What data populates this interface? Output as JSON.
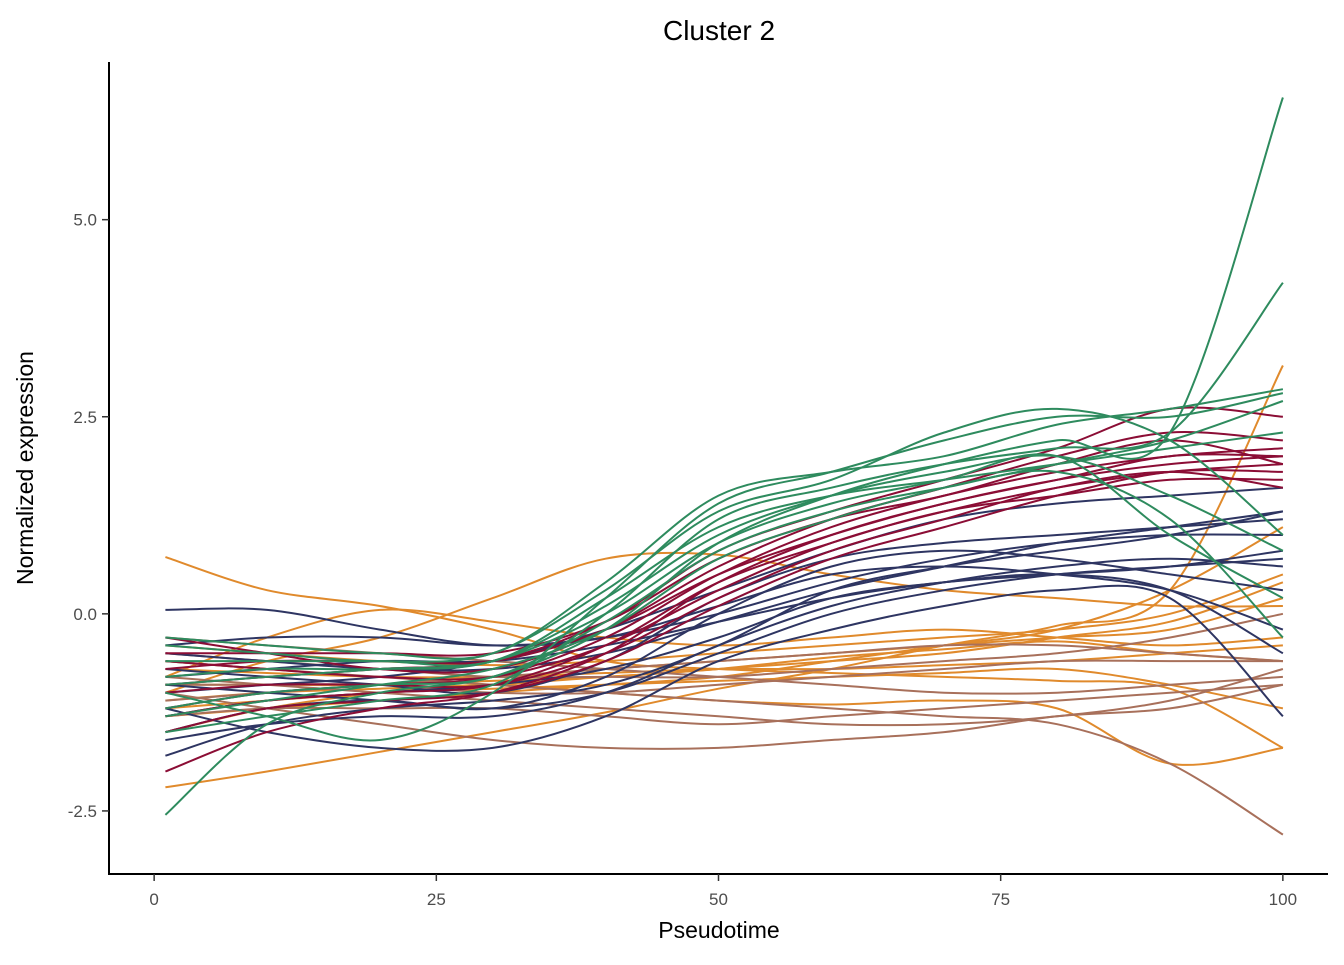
{
  "chart_data": {
    "type": "line",
    "title": "Cluster 2",
    "xlabel": "Pseudotime",
    "ylabel": "Normalized expression",
    "xlim": [
      -4,
      104
    ],
    "ylim": [
      -3.3,
      7.0
    ],
    "x_ticks": [
      0,
      25,
      50,
      75,
      100
    ],
    "x_tick_labels": [
      "0",
      "25",
      "50",
      "75",
      "100"
    ],
    "y_ticks": [
      -2.5,
      0.0,
      2.5,
      5.0
    ],
    "y_tick_labels": [
      "-2.5",
      "0.0",
      "2.5",
      "5.0"
    ],
    "grid": false,
    "legend": "none",
    "x": [
      1,
      10,
      20,
      30,
      40,
      50,
      60,
      70,
      80,
      90,
      100
    ],
    "groups": [
      {
        "color": "#E08A2C",
        "series": [
          {
            "values": [
              0.72,
              0.3,
              0.1,
              -0.2,
              -0.6,
              -0.7,
              -0.75,
              -0.8,
              -0.85,
              -0.95,
              -1.7
            ]
          },
          {
            "values": [
              -2.2,
              -2.0,
              -1.75,
              -1.5,
              -1.25,
              -0.95,
              -0.7,
              -0.4,
              -0.15,
              0.3,
              3.15
            ]
          },
          {
            "values": [
              -1.5,
              -1.2,
              -1.0,
              -0.9,
              -1.0,
              -1.1,
              -1.15,
              -1.1,
              -1.2,
              -1.9,
              -1.7
            ]
          },
          {
            "values": [
              -1.0,
              -0.6,
              -0.3,
              0.2,
              0.7,
              0.75,
              0.5,
              0.3,
              0.2,
              0.1,
              0.1
            ]
          },
          {
            "values": [
              -0.8,
              -0.3,
              0.05,
              -0.1,
              -0.3,
              -0.4,
              -0.3,
              -0.2,
              -0.3,
              -0.4,
              -0.3
            ]
          },
          {
            "values": [
              -0.6,
              -0.7,
              -0.8,
              -0.8,
              -0.7,
              -0.6,
              -0.5,
              -0.4,
              -0.3,
              -0.2,
              0.2
            ]
          },
          {
            "values": [
              -0.9,
              -0.9,
              -0.9,
              -0.85,
              -0.8,
              -0.7,
              -0.6,
              -0.5,
              -0.3,
              -0.1,
              0.4
            ]
          },
          {
            "values": [
              -1.2,
              -1.1,
              -1.0,
              -0.95,
              -0.9,
              -0.85,
              -0.8,
              -0.75,
              -0.7,
              -0.9,
              -1.2
            ]
          },
          {
            "values": [
              -0.4,
              -0.5,
              -0.6,
              -0.65,
              -0.6,
              -0.5,
              -0.4,
              -0.3,
              -0.2,
              0.0,
              0.5
            ]
          },
          {
            "values": [
              -1.3,
              -1.2,
              -1.1,
              -1.0,
              -0.9,
              -0.8,
              -0.6,
              -0.4,
              -0.2,
              0.3,
              1.1
            ]
          },
          {
            "values": [
              -0.7,
              -0.75,
              -0.8,
              -0.8,
              -0.75,
              -0.7,
              -0.7,
              -0.65,
              -0.6,
              -0.5,
              -0.4
            ]
          },
          {
            "values": [
              -1.1,
              -1.0,
              -0.95,
              -0.9,
              -0.8,
              -0.7,
              -0.55,
              -0.45,
              -0.35,
              -0.5,
              -0.6
            ]
          }
        ]
      },
      {
        "color": "#A8705B",
        "series": [
          {
            "values": [
              -0.6,
              -0.7,
              -0.8,
              -0.9,
              -1.0,
              -1.1,
              -1.2,
              -1.3,
              -1.4,
              -1.9,
              -2.8
            ]
          },
          {
            "values": [
              -1.0,
              -1.2,
              -1.4,
              -1.6,
              -1.7,
              -1.7,
              -1.6,
              -1.5,
              -1.3,
              -1.2,
              -0.9
            ]
          },
          {
            "values": [
              -0.8,
              -0.9,
              -1.0,
              -1.1,
              -1.2,
              -1.3,
              -1.4,
              -1.4,
              -1.3,
              -1.1,
              -0.7
            ]
          },
          {
            "values": [
              -1.3,
              -1.2,
              -1.2,
              -1.2,
              -1.3,
              -1.4,
              -1.3,
              -1.2,
              -1.1,
              -1.0,
              -0.9
            ]
          },
          {
            "values": [
              -0.5,
              -0.6,
              -0.7,
              -0.8,
              -0.8,
              -0.8,
              -0.7,
              -0.6,
              -0.5,
              -0.3,
              0.0
            ]
          },
          {
            "values": [
              -0.9,
              -0.9,
              -0.9,
              -1.0,
              -1.0,
              -0.9,
              -0.8,
              -0.7,
              -0.6,
              -0.6,
              -0.6
            ]
          },
          {
            "values": [
              -0.3,
              -0.4,
              -0.5,
              -0.6,
              -0.7,
              -0.8,
              -0.9,
              -1.0,
              -1.0,
              -0.9,
              -0.8
            ]
          },
          {
            "values": [
              -1.1,
              -1.0,
              -0.9,
              -0.8,
              -0.7,
              -0.6,
              -0.5,
              -0.4,
              -0.4,
              -0.5,
              -0.6
            ]
          }
        ]
      },
      {
        "color": "#2E3562",
        "series": [
          {
            "values": [
              -1.8,
              -1.4,
              -1.2,
              -1.1,
              -0.9,
              -0.4,
              0.3,
              0.6,
              0.8,
              1.0,
              1.3
            ]
          },
          {
            "values": [
              -1.5,
              -1.2,
              -1.1,
              -1.2,
              -0.8,
              0.0,
              0.6,
              0.8,
              0.7,
              0.5,
              0.3
            ]
          },
          {
            "values": [
              0.05,
              0.05,
              -0.2,
              -0.4,
              -0.3,
              0.1,
              0.5,
              0.6,
              0.5,
              0.3,
              -0.2
            ]
          },
          {
            "values": [
              -1.2,
              -1.5,
              -1.7,
              -1.7,
              -1.3,
              -0.6,
              -0.2,
              0.1,
              0.3,
              0.2,
              -1.3
            ]
          },
          {
            "values": [
              -0.7,
              -0.8,
              -0.9,
              -1.0,
              -0.6,
              0.2,
              0.7,
              0.9,
              1.0,
              1.1,
              1.2
            ]
          },
          {
            "values": [
              -1.0,
              -0.9,
              -0.8,
              -0.6,
              -0.2,
              0.3,
              0.8,
              1.2,
              1.4,
              1.5,
              1.6
            ]
          },
          {
            "values": [
              -0.5,
              -0.6,
              -0.7,
              -0.7,
              -0.5,
              -0.1,
              0.3,
              0.6,
              0.9,
              1.1,
              1.3
            ]
          },
          {
            "values": [
              -1.3,
              -1.1,
              -1.0,
              -0.9,
              -0.7,
              -0.3,
              0.2,
              0.4,
              0.5,
              0.3,
              -0.5
            ]
          },
          {
            "values": [
              -0.9,
              -1.0,
              -1.1,
              -1.2,
              -1.0,
              -0.5,
              0.0,
              0.3,
              0.5,
              0.6,
              0.7
            ]
          },
          {
            "values": [
              -0.4,
              -0.3,
              -0.3,
              -0.4,
              -0.3,
              0.0,
              0.4,
              0.7,
              0.9,
              1.0,
              1.0
            ]
          },
          {
            "values": [
              -1.6,
              -1.4,
              -1.3,
              -1.3,
              -1.0,
              -0.4,
              0.1,
              0.4,
              0.6,
              0.7,
              0.6
            ]
          },
          {
            "values": [
              -0.8,
              -0.7,
              -0.6,
              -0.6,
              -0.4,
              -0.1,
              0.2,
              0.4,
              0.5,
              0.6,
              0.8
            ]
          }
        ]
      },
      {
        "color": "#8B0D35",
        "series": [
          {
            "values": [
              -2.0,
              -1.5,
              -1.2,
              -1.0,
              -0.5,
              0.4,
              1.0,
              1.4,
              1.7,
              1.9,
              2.0
            ]
          },
          {
            "values": [
              -1.2,
              -1.0,
              -0.9,
              -0.8,
              -0.3,
              0.5,
              1.1,
              1.5,
              1.8,
              2.0,
              2.1
            ]
          },
          {
            "values": [
              -0.6,
              -0.7,
              -0.8,
              -0.8,
              -0.4,
              0.3,
              0.9,
              1.3,
              1.6,
              1.8,
              1.9
            ]
          },
          {
            "values": [
              -0.3,
              -0.5,
              -0.7,
              -0.7,
              -0.2,
              0.6,
              1.2,
              1.6,
              2.0,
              2.3,
              2.2
            ]
          },
          {
            "values": [
              -1.5,
              -1.2,
              -1.1,
              -1.0,
              -0.6,
              0.1,
              0.7,
              1.1,
              1.5,
              1.8,
              1.8
            ]
          },
          {
            "values": [
              -0.9,
              -0.8,
              -0.7,
              -0.6,
              -0.1,
              0.8,
              1.3,
              1.7,
              2.1,
              2.6,
              2.5
            ]
          },
          {
            "values": [
              -1.0,
              -0.9,
              -0.9,
              -0.9,
              -0.5,
              0.2,
              0.8,
              1.2,
              1.6,
              1.8,
              1.6
            ]
          },
          {
            "values": [
              -0.7,
              -0.6,
              -0.6,
              -0.6,
              -0.2,
              0.5,
              1.0,
              1.4,
              1.7,
              2.0,
              2.0
            ]
          },
          {
            "values": [
              -1.3,
              -1.1,
              -1.0,
              -0.9,
              -0.4,
              0.4,
              0.9,
              1.3,
              1.5,
              1.7,
              1.7
            ]
          },
          {
            "values": [
              -0.5,
              -0.5,
              -0.5,
              -0.5,
              -0.1,
              0.7,
              1.2,
              1.5,
              1.9,
              2.2,
              1.9
            ]
          }
        ]
      },
      {
        "color": "#2E8B5E",
        "series": [
          {
            "values": [
              -2.55,
              -1.4,
              -1.0,
              -0.8,
              -0.2,
              0.9,
              1.5,
              1.9,
              2.2,
              2.3,
              6.55
            ]
          },
          {
            "values": [
              -1.5,
              -1.3,
              -1.1,
              -0.9,
              0.0,
              1.2,
              1.6,
              1.9,
              2.1,
              2.3,
              4.2
            ]
          },
          {
            "values": [
              -1.0,
              -1.3,
              -1.6,
              -1.0,
              0.2,
              1.4,
              1.8,
              2.2,
              2.5,
              2.5,
              2.8
            ]
          },
          {
            "values": [
              -0.3,
              -0.4,
              -0.5,
              -0.5,
              0.4,
              1.5,
              1.8,
              2.0,
              2.4,
              2.6,
              2.85
            ]
          },
          {
            "values": [
              -0.8,
              -0.7,
              -0.7,
              -0.6,
              0.1,
              1.0,
              1.5,
              1.8,
              2.0,
              1.5,
              0.8
            ]
          },
          {
            "values": [
              -1.2,
              -1.0,
              -0.9,
              -0.8,
              -0.1,
              0.8,
              1.3,
              1.6,
              1.8,
              1.2,
              -0.3
            ]
          },
          {
            "values": [
              -0.6,
              -0.6,
              -0.6,
              -0.6,
              0.2,
              1.1,
              1.5,
              1.7,
              1.9,
              2.1,
              2.3
            ]
          },
          {
            "values": [
              -0.4,
              -0.5,
              -0.6,
              -0.5,
              0.3,
              1.3,
              1.7,
              2.3,
              2.6,
              2.2,
              1.0
            ]
          },
          {
            "values": [
              -0.9,
              -0.8,
              -0.7,
              -0.6,
              0.0,
              0.9,
              1.4,
              1.7,
              2.0,
              1.0,
              0.2
            ]
          },
          {
            "values": [
              -1.3,
              -1.1,
              -0.9,
              -0.7,
              -0.2,
              0.7,
              1.2,
              1.6,
              1.9,
              2.2,
              2.7
            ]
          }
        ]
      }
    ]
  }
}
